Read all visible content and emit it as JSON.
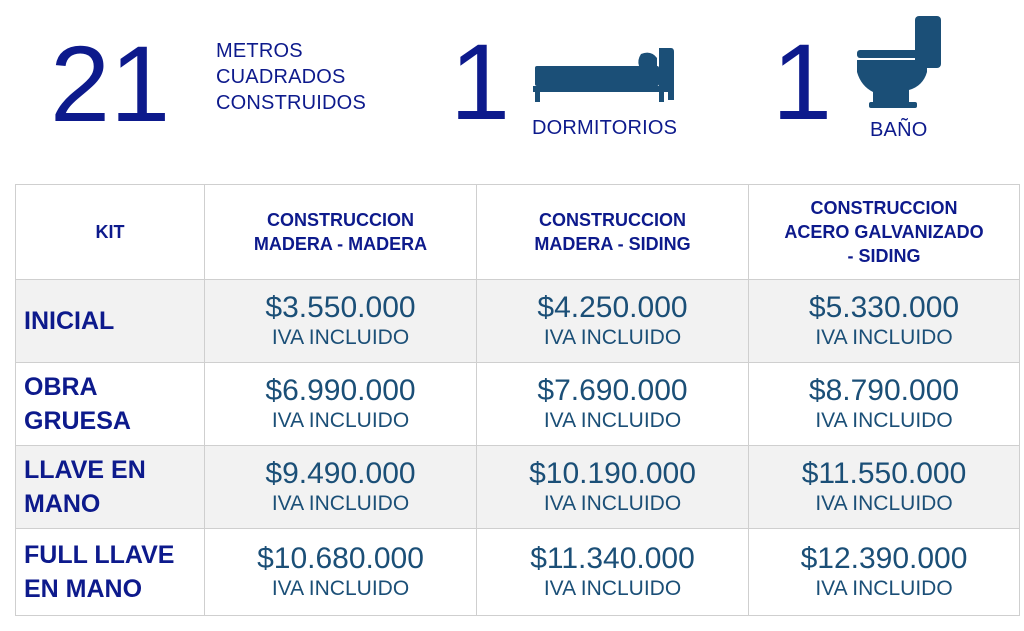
{
  "header": {
    "area_number": "21",
    "area_label_lines": [
      "METROS",
      "CUADRADOS",
      "CONSTRUIDOS"
    ],
    "bedrooms_number": "1",
    "bedrooms_label": "DORMITORIOS",
    "bathrooms_number": "1",
    "bathrooms_label": "BAÑO",
    "icons": {
      "bed": "bed-icon",
      "toilet": "toilet-icon"
    },
    "colors": {
      "primary": "#0d1a8c",
      "price": "#1b4f77",
      "icon": "#1b4f77"
    }
  },
  "table": {
    "headers": [
      {
        "lines": [
          "KIT"
        ]
      },
      {
        "lines": [
          "CONSTRUCCION",
          "MADERA - MADERA"
        ]
      },
      {
        "lines": [
          "CONSTRUCCION",
          "MADERA - SIDING"
        ]
      },
      {
        "lines": [
          "CONSTRUCCION",
          "ACERO GALVANIZADO",
          "- SIDING"
        ]
      }
    ],
    "rows": [
      {
        "label_lines": [
          "INICIAL"
        ],
        "prices": [
          "$3.550.000",
          "$4.250.000",
          "$5.330.000"
        ],
        "note": "IVA INCLUIDO"
      },
      {
        "label_lines": [
          "OBRA",
          "GRUESA"
        ],
        "prices": [
          "$6.990.000",
          "$7.690.000",
          "$8.790.000"
        ],
        "note": "IVA INCLUIDO"
      },
      {
        "label_lines": [
          "LLAVE EN",
          "MANO"
        ],
        "prices": [
          "$9.490.000",
          "$10.190.000",
          "$11.550.000"
        ],
        "note": "IVA INCLUIDO"
      },
      {
        "label_lines": [
          "FULL LLAVE",
          "EN MANO"
        ],
        "prices": [
          "$10.680.000",
          "$11.340.000",
          "$12.390.000"
        ],
        "note": "IVA INCLUIDO"
      }
    ]
  }
}
